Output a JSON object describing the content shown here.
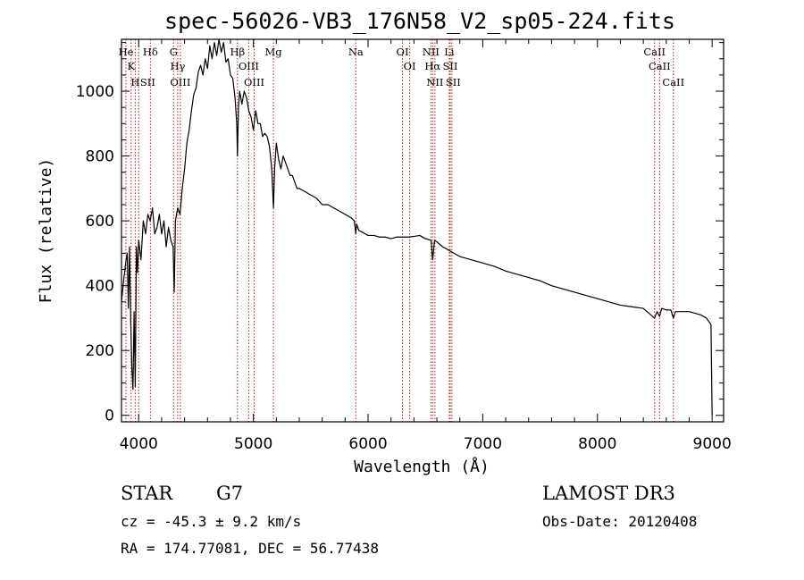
{
  "chart_data": {
    "type": "line",
    "title": "spec-56026-VB3_176N58_V2_sp05-224.fits",
    "xlabel": "Wavelength (Å)",
    "ylabel": "Flux (relative)",
    "xlim": [
      3850,
      9100
    ],
    "ylim": [
      -20,
      1160
    ],
    "xticks": [
      4000,
      5000,
      6000,
      7000,
      8000,
      9000
    ],
    "yticks": [
      0,
      200,
      400,
      600,
      800,
      1000
    ],
    "series": [
      {
        "name": "spectrum",
        "x": [
          3850,
          3870,
          3890,
          3900,
          3910,
          3920,
          3930,
          3940,
          3950,
          3960,
          3970,
          3980,
          3990,
          4000,
          4020,
          4040,
          4060,
          4080,
          4100,
          4120,
          4140,
          4160,
          4180,
          4200,
          4220,
          4240,
          4260,
          4280,
          4300,
          4310,
          4320,
          4340,
          4360,
          4380,
          4400,
          4420,
          4440,
          4460,
          4480,
          4500,
          4520,
          4540,
          4560,
          4580,
          4600,
          4620,
          4640,
          4660,
          4680,
          4700,
          4720,
          4740,
          4760,
          4780,
          4800,
          4820,
          4840,
          4855,
          4861,
          4870,
          4880,
          4900,
          4920,
          4940,
          4960,
          4980,
          5000,
          5020,
          5040,
          5060,
          5080,
          5100,
          5120,
          5140,
          5160,
          5175,
          5185,
          5200,
          5220,
          5240,
          5260,
          5280,
          5300,
          5320,
          5340,
          5360,
          5380,
          5400,
          5450,
          5500,
          5550,
          5600,
          5650,
          5700,
          5750,
          5800,
          5850,
          5880,
          5893,
          5900,
          5920,
          5950,
          6000,
          6050,
          6100,
          6150,
          6200,
          6250,
          6300,
          6350,
          6400,
          6450,
          6500,
          6550,
          6563,
          6580,
          6600,
          6650,
          6700,
          6750,
          6800,
          6900,
          7000,
          7100,
          7200,
          7300,
          7400,
          7500,
          7600,
          7700,
          7800,
          7900,
          8000,
          8100,
          8200,
          8300,
          8400,
          8498,
          8520,
          8542,
          8560,
          8600,
          8640,
          8662,
          8680,
          8700,
          8800,
          8900,
          8950,
          8990,
          9000
        ],
        "y": [
          350,
          420,
          480,
          500,
          330,
          520,
          300,
          150,
          80,
          320,
          90,
          520,
          440,
          540,
          480,
          600,
          560,
          620,
          600,
          640,
          560,
          580,
          620,
          560,
          600,
          520,
          580,
          540,
          520,
          380,
          600,
          640,
          620,
          700,
          760,
          840,
          880,
          940,
          990,
          1010,
          1060,
          1080,
          1050,
          1100,
          1070,
          1140,
          1100,
          1150,
          1110,
          1160,
          1120,
          1150,
          1090,
          1100,
          1050,
          1040,
          980,
          900,
          800,
          950,
          1000,
          960,
          1000,
          980,
          940,
          920,
          880,
          940,
          900,
          900,
          860,
          870,
          860,
          830,
          760,
          640,
          760,
          840,
          790,
          760,
          800,
          780,
          760,
          740,
          740,
          720,
          700,
          700,
          690,
          680,
          670,
          650,
          650,
          640,
          630,
          620,
          610,
          600,
          560,
          590,
          570,
          565,
          555,
          555,
          550,
          550,
          545,
          550,
          550,
          550,
          552,
          555,
          545,
          540,
          480,
          540,
          535,
          520,
          510,
          500,
          490,
          480,
          470,
          460,
          445,
          435,
          425,
          415,
          400,
          390,
          380,
          370,
          360,
          350,
          340,
          335,
          330,
          300,
          320,
          305,
          330,
          325,
          325,
          300,
          320,
          320,
          320,
          310,
          300,
          280,
          0
        ]
      }
    ],
    "line_markers": [
      {
        "wavelength": 3889,
        "label": "He"
      },
      {
        "wavelength": 3934,
        "label": "K"
      },
      {
        "wavelength": 3970,
        "label": "H"
      },
      {
        "wavelength": 4000,
        "label": "SII"
      },
      {
        "wavelength": 4102,
        "label": "Hδ"
      },
      {
        "wavelength": 4304,
        "label": "G"
      },
      {
        "wavelength": 4340,
        "label": "Hγ"
      },
      {
        "wavelength": 4363,
        "label": "OIII"
      },
      {
        "wavelength": 4861,
        "label": "Hβ"
      },
      {
        "wavelength": 4959,
        "label": "OIII"
      },
      {
        "wavelength": 5007,
        "label": "OIII"
      },
      {
        "wavelength": 5175,
        "label": "Mg"
      },
      {
        "wavelength": 5893,
        "label": "Na"
      },
      {
        "wavelength": 6300,
        "label": "OI"
      },
      {
        "wavelength": 6363,
        "label": "OI"
      },
      {
        "wavelength": 6548,
        "label": "NII"
      },
      {
        "wavelength": 6563,
        "label": "Hα"
      },
      {
        "wavelength": 6583,
        "label": "NII"
      },
      {
        "wavelength": 6708,
        "label": "Li"
      },
      {
        "wavelength": 6716,
        "label": "SII"
      },
      {
        "wavelength": 6731,
        "label": "SII"
      },
      {
        "wavelength": 8498,
        "label": "CaII"
      },
      {
        "wavelength": 8542,
        "label": "CaII"
      },
      {
        "wavelength": 8662,
        "label": "CaII"
      }
    ],
    "marker_color": "#b22222",
    "line_color": "#000000"
  },
  "info": {
    "object_type": "STAR",
    "subclass": "G7",
    "survey": "LAMOST DR3",
    "cz": "cz = -45.3 ± 9.2 km/s",
    "obs_date": "Obs-Date: 20120408",
    "coords": "RA = 174.77081, DEC =  56.77438"
  }
}
